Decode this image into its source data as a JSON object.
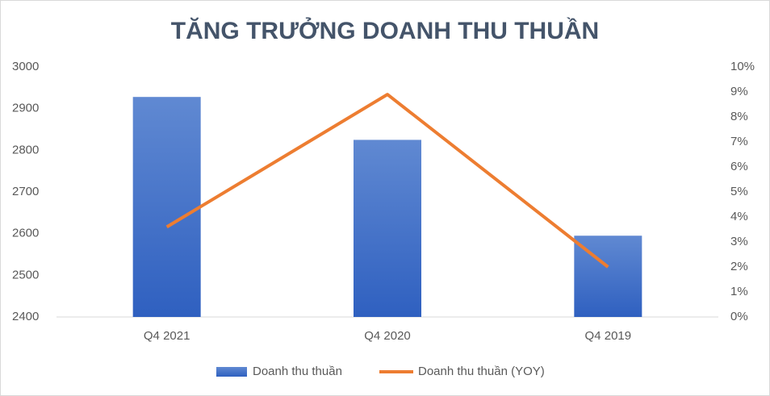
{
  "chart_data": {
    "type": "combo",
    "title": "TĂNG TRƯỞNG DOANH THU THUẦN",
    "categories": [
      "Q4 2021",
      "Q4 2020",
      "Q4 2019"
    ],
    "series": [
      {
        "name": "Doanh thu thuần",
        "type": "bar",
        "color": "#4472c4",
        "values": [
          2928,
          2825,
          2595
        ]
      },
      {
        "name": "Doanh thu thuần (YOY)",
        "type": "line",
        "color": "#ed7d31",
        "axis": "y2",
        "values": [
          3.6,
          8.9,
          2.0
        ]
      }
    ],
    "ylim": [
      2400,
      3000
    ],
    "yticks": [
      2400,
      2500,
      2600,
      2700,
      2800,
      2900,
      3000
    ],
    "y2lim": [
      0,
      10
    ],
    "y2ticks": [
      {
        "value": 0,
        "label": "0%"
      },
      {
        "value": 1,
        "label": "1%"
      },
      {
        "value": 2,
        "label": "2%"
      },
      {
        "value": 3,
        "label": "3%"
      },
      {
        "value": 4,
        "label": "4%"
      },
      {
        "value": 5,
        "label": "5%"
      },
      {
        "value": 6,
        "label": "6%"
      },
      {
        "value": 7,
        "label": "7%"
      },
      {
        "value": 8,
        "label": "8%"
      },
      {
        "value": 9,
        "label": "9%"
      },
      {
        "value": 10,
        "label": "10%"
      }
    ],
    "grid": false
  }
}
